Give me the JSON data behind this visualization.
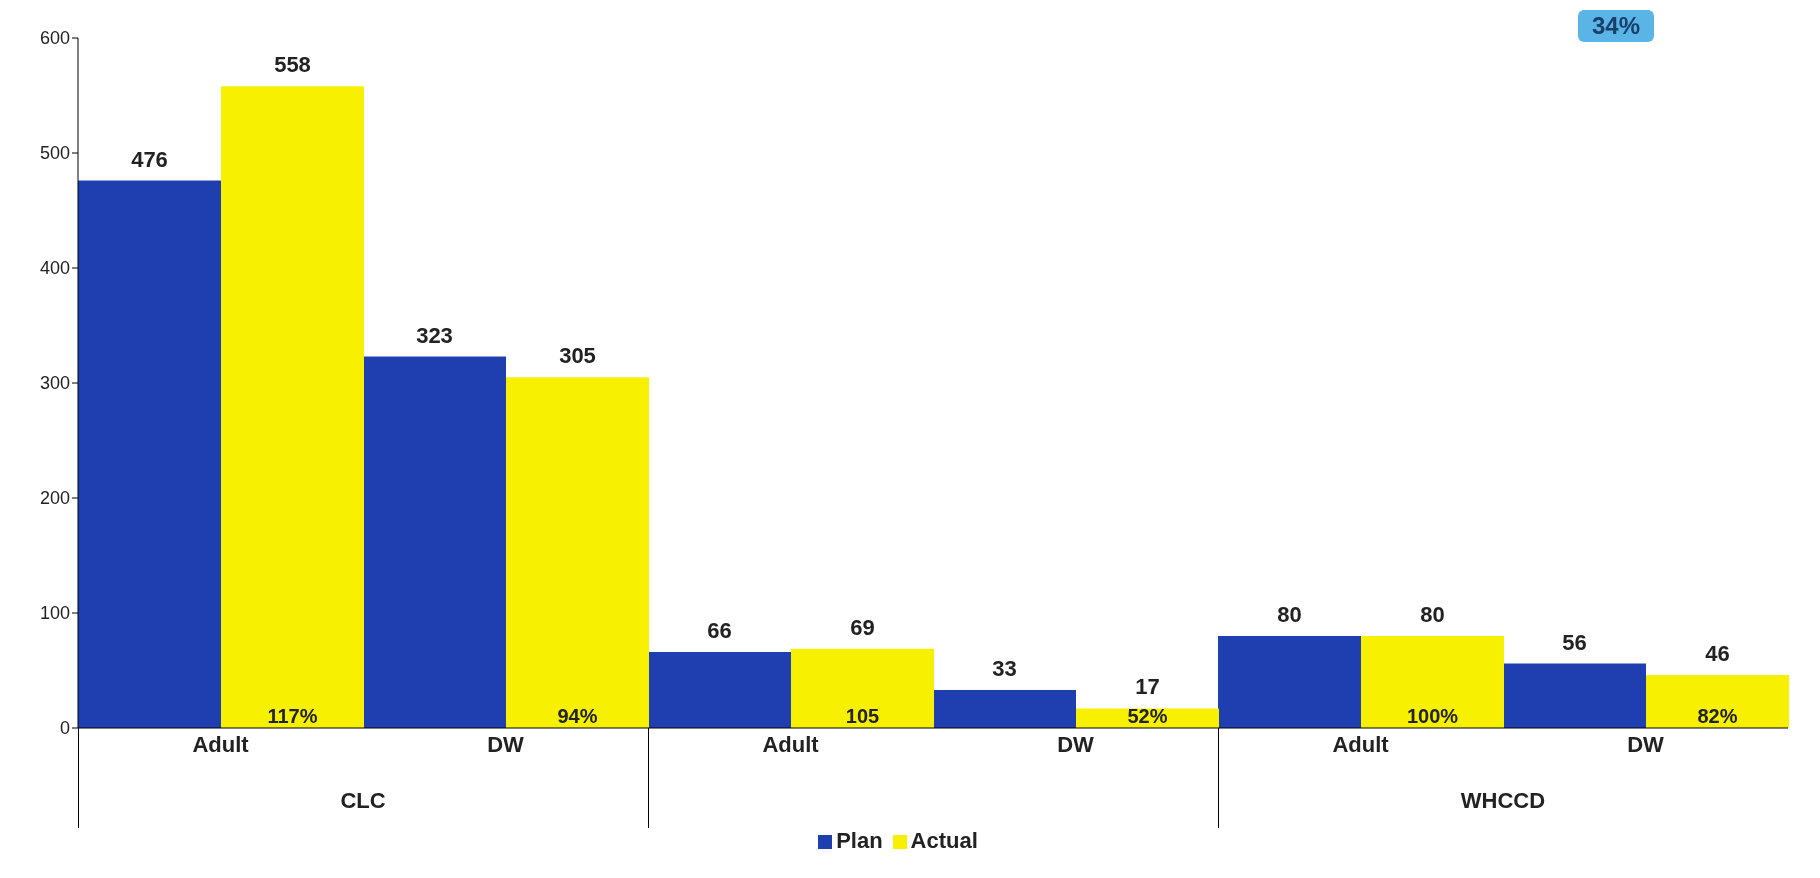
{
  "chart_data": {
    "type": "bar",
    "categories": [
      "Adult",
      "DW",
      "Adult",
      "DW",
      "Adult",
      "DW"
    ],
    "series": [
      {
        "name": "Plan",
        "color": "#1f3fb0",
        "values": [
          476,
          323,
          66,
          33,
          80,
          56
        ]
      },
      {
        "name": "Actual",
        "color": "#f7f000",
        "values": [
          558,
          305,
          69,
          17,
          80,
          46
        ]
      }
    ],
    "ylim": [
      0,
      600
    ],
    "yticks": [
      0,
      100,
      200,
      300,
      400,
      500,
      600
    ],
    "legend": "bottom",
    "data_labels": true,
    "annotations": [
      "117%",
      "94%",
      "105",
      "52%",
      "100%",
      "82%",
      "CLC",
      "WHCCD",
      "34%"
    ]
  }
}
